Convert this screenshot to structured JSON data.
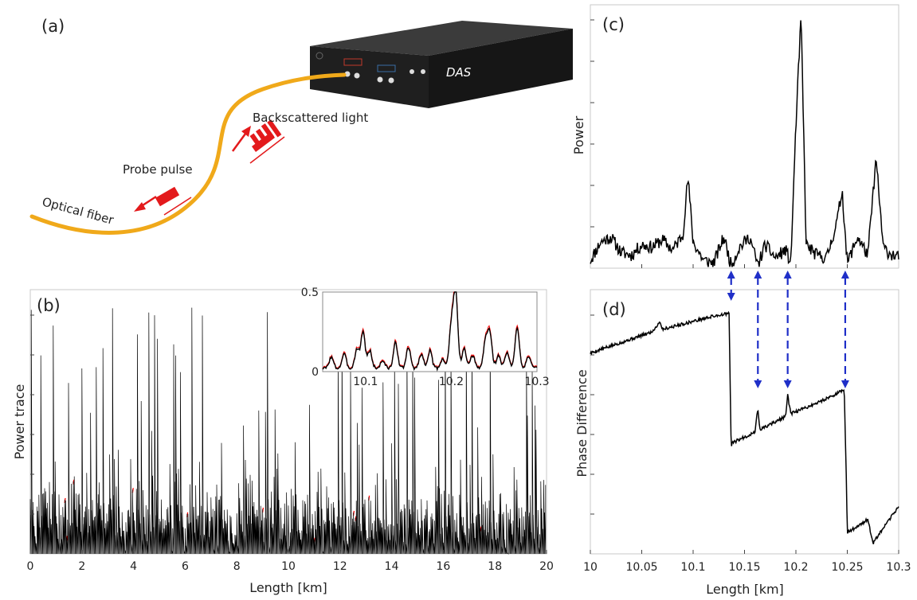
{
  "panel_a": {
    "label": "(a)",
    "device_label": "DAS",
    "backscatter_label": "Backscattered light",
    "probe_label": "Probe pulse",
    "fiber_label": "Optical fiber",
    "colors": {
      "fiber": "#f0a91a",
      "arrow": "#e31a1c",
      "device": "#232323"
    }
  },
  "chart_data": [
    {
      "panel": "(b)",
      "type": "line",
      "title": "",
      "xlabel": "Length [km]",
      "ylabel": "Power trace",
      "xlim": [
        0,
        20
      ],
      "xticks": [
        0,
        2,
        4,
        6,
        8,
        10,
        12,
        14,
        16,
        18,
        20
      ],
      "series": [
        {
          "color": "#000000",
          "x_range": [
            0,
            20
          ],
          "description_values": "dense noise-like intensity trace, mean near 0.2 of axis max, spikes up to ~0.95"
        },
        {
          "color": "#ff0000",
          "x_range": [
            0,
            20
          ]
        }
      ],
      "inset": {
        "xlim": [
          10.05,
          10.3
        ],
        "ylim": [
          0,
          0.5
        ],
        "xticks": [
          10.1,
          10.2,
          10.3
        ],
        "yticks": [
          0,
          0.5
        ],
        "series_colors": [
          "#000000",
          "#ff0000"
        ]
      }
    },
    {
      "panel": "(c)",
      "type": "line",
      "title": "",
      "xlabel": "",
      "ylabel": "Power",
      "xlim": [
        10,
        10.3
      ],
      "x": [
        10.0,
        10.01,
        10.02,
        10.03,
        10.04,
        10.05,
        10.06,
        10.07,
        10.08,
        10.09,
        10.095,
        10.1,
        10.11,
        10.12,
        10.13,
        10.137,
        10.145,
        10.155,
        10.163,
        10.17,
        10.18,
        10.19,
        10.195,
        10.2,
        10.205,
        10.21,
        10.22,
        10.23,
        10.24,
        10.245,
        10.25,
        10.26,
        10.27,
        10.278,
        10.285,
        10.29,
        10.3
      ],
      "y": [
        0.03,
        0.1,
        0.12,
        0.06,
        0.05,
        0.09,
        0.08,
        0.11,
        0.07,
        0.13,
        0.35,
        0.1,
        0.03,
        0.02,
        0.12,
        0.01,
        0.08,
        0.12,
        0.01,
        0.09,
        0.04,
        0.07,
        0.02,
        0.55,
        0.97,
        0.09,
        0.05,
        0.04,
        0.18,
        0.3,
        0.02,
        0.12,
        0.05,
        0.42,
        0.08,
        0.06,
        0.04
      ],
      "markers_x": [
        10.137,
        10.163,
        10.192,
        10.248
      ]
    },
    {
      "panel": "(d)",
      "type": "line",
      "title": "",
      "xlabel": "Length [km]",
      "ylabel": "Phase Difference",
      "xlim": [
        10,
        10.3
      ],
      "xticks": [
        10,
        10.05,
        10.1,
        10.15,
        10.2,
        10.25,
        10.3
      ],
      "xticklabels": [
        "10",
        "10.05",
        "10.1",
        "10.15",
        "10.2",
        "10.25",
        "10.3"
      ],
      "ylim": [
        0,
        1
      ],
      "x": [
        10.0,
        10.03,
        10.06,
        10.068,
        10.07,
        10.1,
        10.12,
        10.135,
        10.137,
        10.138,
        10.16,
        10.163,
        10.165,
        10.19,
        10.192,
        10.195,
        10.22,
        10.247,
        10.249,
        10.25,
        10.27,
        10.275,
        10.3
      ],
      "y": [
        0.76,
        0.8,
        0.84,
        0.88,
        0.85,
        0.88,
        0.9,
        0.91,
        0.4,
        0.42,
        0.46,
        0.55,
        0.47,
        0.52,
        0.6,
        0.53,
        0.57,
        0.62,
        0.3,
        0.08,
        0.13,
        0.04,
        0.18
      ]
    }
  ]
}
